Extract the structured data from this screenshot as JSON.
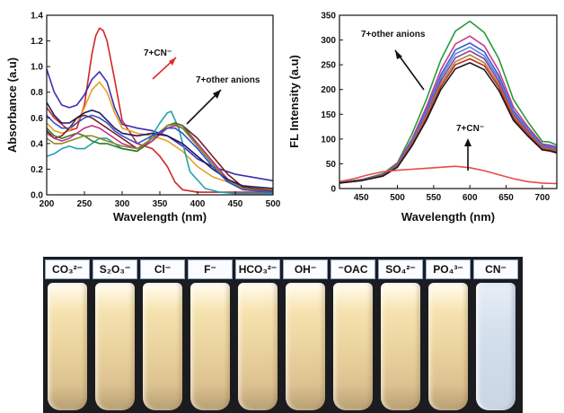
{
  "chart_data": [
    {
      "type": "line",
      "title": "",
      "xlabel": "Wavelength (nm)",
      "ylabel": "Absorbance (a.u)",
      "xlim": [
        200,
        500
      ],
      "ylim": [
        0.0,
        1.4
      ],
      "xticks": [
        200,
        250,
        300,
        350,
        400,
        450,
        500
      ],
      "yticks": [
        "0.0",
        "0.2",
        "0.4",
        "0.6",
        "0.8",
        "1.0",
        "1.2",
        "1.4"
      ],
      "annotations": [
        "7+CN⁻",
        "7+other anions"
      ],
      "series": [
        {
          "color": "#d42525",
          "x": [
            200,
            210,
            220,
            230,
            240,
            250,
            260,
            265,
            270,
            275,
            280,
            290,
            300,
            320,
            340,
            350,
            360,
            370,
            380,
            400,
            450,
            500
          ],
          "y": [
            0.68,
            0.6,
            0.55,
            0.5,
            0.52,
            0.7,
            1.1,
            1.24,
            1.3,
            1.28,
            1.2,
            0.9,
            0.58,
            0.4,
            0.36,
            0.3,
            0.22,
            0.1,
            0.04,
            0.02,
            0.02,
            0.02
          ]
        },
        {
          "color": "#3a2fb0",
          "x": [
            200,
            210,
            220,
            230,
            240,
            250,
            260,
            270,
            280,
            290,
            300,
            320,
            340,
            360,
            380,
            400,
            420,
            450,
            500
          ],
          "y": [
            0.98,
            0.8,
            0.7,
            0.68,
            0.7,
            0.78,
            0.9,
            0.96,
            0.88,
            0.68,
            0.55,
            0.52,
            0.5,
            0.46,
            0.38,
            0.28,
            0.22,
            0.16,
            0.11
          ]
        },
        {
          "color": "#e8a020",
          "x": [
            200,
            210,
            220,
            230,
            240,
            250,
            260,
            270,
            280,
            290,
            300,
            320,
            340,
            360,
            380,
            400,
            420,
            450,
            500
          ],
          "y": [
            0.56,
            0.5,
            0.48,
            0.5,
            0.56,
            0.68,
            0.82,
            0.88,
            0.8,
            0.64,
            0.52,
            0.48,
            0.46,
            0.42,
            0.34,
            0.22,
            0.14,
            0.08,
            0.04
          ]
        },
        {
          "color": "#20a0b0",
          "x": [
            200,
            210,
            220,
            230,
            240,
            250,
            260,
            270,
            280,
            290,
            300,
            320,
            335,
            350,
            360,
            365,
            375,
            390,
            410,
            430,
            450,
            500
          ],
          "y": [
            0.3,
            0.32,
            0.36,
            0.38,
            0.36,
            0.36,
            0.4,
            0.44,
            0.44,
            0.4,
            0.36,
            0.34,
            0.42,
            0.56,
            0.64,
            0.65,
            0.52,
            0.18,
            0.05,
            0.02,
            0.01,
            0.01
          ]
        },
        {
          "color": "#7a1f1f",
          "x": [
            200,
            210,
            220,
            230,
            240,
            250,
            260,
            270,
            280,
            290,
            300,
            320,
            340,
            360,
            370,
            380,
            400,
            420,
            440,
            460,
            500
          ],
          "y": [
            0.5,
            0.44,
            0.46,
            0.52,
            0.6,
            0.62,
            0.6,
            0.56,
            0.52,
            0.48,
            0.44,
            0.36,
            0.44,
            0.54,
            0.56,
            0.54,
            0.44,
            0.3,
            0.16,
            0.06,
            0.03
          ]
        },
        {
          "color": "#2f7a2f",
          "x": [
            200,
            210,
            220,
            230,
            240,
            250,
            260,
            270,
            280,
            290,
            300,
            320,
            340,
            360,
            370,
            380,
            400,
            420,
            440,
            460,
            500
          ],
          "y": [
            0.52,
            0.46,
            0.44,
            0.46,
            0.48,
            0.46,
            0.42,
            0.4,
            0.4,
            0.38,
            0.36,
            0.34,
            0.42,
            0.54,
            0.56,
            0.54,
            0.4,
            0.26,
            0.12,
            0.05,
            0.02
          ]
        },
        {
          "color": "#c0308a",
          "x": [
            200,
            210,
            220,
            230,
            240,
            250,
            260,
            270,
            280,
            290,
            300,
            320,
            340,
            360,
            370,
            380,
            400,
            420,
            440,
            460,
            500
          ],
          "y": [
            0.48,
            0.44,
            0.42,
            0.44,
            0.48,
            0.52,
            0.54,
            0.52,
            0.48,
            0.44,
            0.4,
            0.36,
            0.42,
            0.52,
            0.54,
            0.52,
            0.4,
            0.26,
            0.12,
            0.05,
            0.02
          ]
        },
        {
          "color": "#8b8b20",
          "x": [
            200,
            210,
            220,
            230,
            240,
            250,
            260,
            270,
            280,
            290,
            300,
            320,
            340,
            360,
            370,
            380,
            400,
            420,
            440,
            460,
            500
          ],
          "y": [
            0.44,
            0.4,
            0.4,
            0.42,
            0.44,
            0.46,
            0.46,
            0.44,
            0.42,
            0.4,
            0.38,
            0.36,
            0.44,
            0.54,
            0.55,
            0.52,
            0.38,
            0.24,
            0.11,
            0.05,
            0.02
          ]
        },
        {
          "color": "#1a1a60",
          "x": [
            200,
            210,
            220,
            230,
            240,
            250,
            260,
            270,
            280,
            290,
            300,
            320,
            340,
            360,
            380,
            400,
            420,
            440,
            460,
            500
          ],
          "y": [
            0.72,
            0.62,
            0.56,
            0.56,
            0.6,
            0.64,
            0.66,
            0.64,
            0.58,
            0.52,
            0.48,
            0.46,
            0.48,
            0.46,
            0.4,
            0.3,
            0.2,
            0.12,
            0.07,
            0.05
          ]
        },
        {
          "color": "#3050d0",
          "x": [
            200,
            210,
            220,
            230,
            240,
            250,
            260,
            270,
            280,
            290,
            300,
            320,
            340,
            360,
            370,
            380,
            400,
            420,
            440,
            460,
            500
          ],
          "y": [
            0.62,
            0.56,
            0.52,
            0.52,
            0.56,
            0.6,
            0.62,
            0.6,
            0.56,
            0.5,
            0.46,
            0.4,
            0.46,
            0.52,
            0.52,
            0.48,
            0.36,
            0.22,
            0.1,
            0.04,
            0.02
          ]
        }
      ]
    },
    {
      "type": "line",
      "title": "",
      "xlabel": "Wavelength (nm)",
      "ylabel": "FL Intensity (a.u)",
      "xlim": [
        420,
        720
      ],
      "ylim": [
        0,
        350
      ],
      "xticks": [
        450,
        500,
        550,
        600,
        650,
        700
      ],
      "yticks": [
        0,
        50,
        100,
        150,
        200,
        250,
        300,
        350
      ],
      "annotations": [
        "7+other anions",
        "7+CN⁻"
      ],
      "series": [
        {
          "color": "#2a9a3a",
          "x": [
            420,
            450,
            480,
            500,
            520,
            540,
            560,
            580,
            600,
            620,
            640,
            660,
            680,
            700,
            710,
            720
          ],
          "y": [
            12,
            18,
            30,
            52,
            110,
            180,
            260,
            318,
            338,
            315,
            262,
            180,
            135,
            95,
            94,
            88
          ]
        },
        {
          "color": "#c83c8a",
          "x": [
            420,
            450,
            480,
            500,
            520,
            540,
            560,
            580,
            600,
            620,
            640,
            660,
            680,
            700,
            710,
            720
          ],
          "y": [
            12,
            18,
            28,
            50,
            100,
            165,
            240,
            292,
            308,
            288,
            238,
            165,
            125,
            90,
            88,
            84
          ]
        },
        {
          "color": "#3a5ad0",
          "x": [
            420,
            450,
            480,
            500,
            520,
            540,
            560,
            580,
            600,
            620,
            640,
            660,
            680,
            700,
            710,
            720
          ],
          "y": [
            12,
            18,
            28,
            48,
            96,
            158,
            230,
            280,
            294,
            276,
            228,
            158,
            120,
            88,
            86,
            82
          ]
        },
        {
          "color": "#5a8ad8",
          "x": [
            420,
            450,
            480,
            500,
            520,
            540,
            560,
            580,
            600,
            620,
            640,
            660,
            680,
            700,
            710,
            720
          ],
          "y": [
            12,
            17,
            27,
            47,
            94,
            154,
            224,
            272,
            286,
            268,
            222,
            154,
            118,
            86,
            84,
            80
          ]
        },
        {
          "color": "#8a3ab0",
          "x": [
            420,
            450,
            480,
            500,
            520,
            540,
            560,
            580,
            600,
            620,
            640,
            660,
            680,
            700,
            710,
            720
          ],
          "y": [
            12,
            17,
            27,
            46,
            92,
            150,
            218,
            264,
            278,
            262,
            216,
            150,
            115,
            84,
            82,
            78
          ]
        },
        {
          "color": "#b08a20",
          "x": [
            420,
            450,
            480,
            500,
            520,
            540,
            560,
            580,
            600,
            620,
            640,
            660,
            680,
            700,
            710,
            720
          ],
          "y": [
            11,
            17,
            26,
            45,
            90,
            146,
            212,
            256,
            270,
            254,
            210,
            146,
            112,
            82,
            80,
            76
          ]
        },
        {
          "color": "#c02a2a",
          "x": [
            420,
            450,
            480,
            500,
            520,
            540,
            560,
            580,
            600,
            620,
            640,
            660,
            680,
            700,
            710,
            720
          ],
          "y": [
            11,
            16,
            26,
            44,
            88,
            142,
            206,
            250,
            262,
            248,
            205,
            142,
            110,
            80,
            78,
            74
          ]
        },
        {
          "color": "#1a1a1a",
          "x": [
            420,
            450,
            480,
            500,
            520,
            540,
            560,
            580,
            600,
            620,
            640,
            660,
            680,
            700,
            710,
            720
          ],
          "y": [
            11,
            16,
            25,
            43,
            86,
            138,
            200,
            242,
            254,
            240,
            198,
            138,
            106,
            78,
            76,
            72
          ]
        },
        {
          "color": "#e84a4a",
          "x": [
            420,
            440,
            460,
            480,
            500,
            520,
            540,
            560,
            580,
            600,
            620,
            640,
            660,
            680,
            700,
            720
          ],
          "y": [
            14,
            20,
            28,
            34,
            37,
            39,
            41,
            43,
            45,
            42,
            36,
            28,
            20,
            14,
            11,
            10
          ]
        }
      ]
    }
  ],
  "vials": {
    "labels": [
      "CO₃²⁻",
      "S₂O₃⁻",
      "Cl⁻",
      "F⁻",
      "HCO₃²⁻",
      "OH⁻",
      "⁻OAC",
      "SO₄²⁻",
      "PO₄³⁻",
      "CN⁻"
    ],
    "solution_colors": [
      "yellow",
      "yellow",
      "yellow",
      "yellow",
      "yellow",
      "yellow",
      "yellow",
      "yellow",
      "yellow",
      "clear"
    ]
  }
}
